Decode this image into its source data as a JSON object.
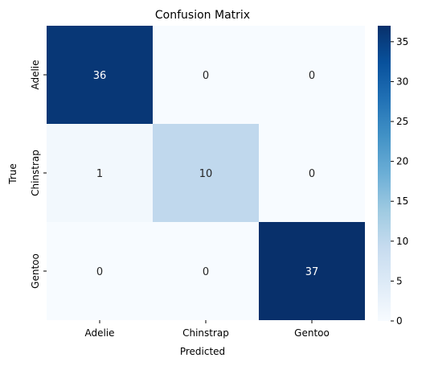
{
  "chart_data": {
    "type": "heatmap",
    "title": "Confusion Matrix",
    "xlabel": "Predicted",
    "ylabel": "True",
    "x_categories": [
      "Adelie",
      "Chinstrap",
      "Gentoo"
    ],
    "y_categories": [
      "Adelie",
      "Chinstrap",
      "Gentoo"
    ],
    "values": [
      [
        36,
        0,
        0
      ],
      [
        1,
        10,
        0
      ],
      [
        0,
        0,
        37
      ]
    ],
    "colorbar": {
      "min": 0,
      "max": 37,
      "ticks": [
        0,
        5,
        10,
        15,
        20,
        25,
        30,
        35
      ]
    },
    "colormap": "Blues",
    "annotate": true,
    "colors": {
      "low": "#f7fbff",
      "high": "#08306b"
    }
  }
}
